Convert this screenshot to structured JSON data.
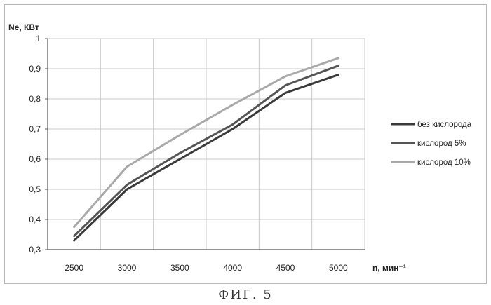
{
  "figure_caption": "ФИГ. 5",
  "chart_data": {
    "type": "line",
    "title": "",
    "xlabel": "n, мин⁻¹",
    "ylabel": "Ne, КВт",
    "x": [
      2500,
      3000,
      3500,
      4000,
      4500,
      5000
    ],
    "x_tick_labels": [
      "2500",
      "3000",
      "3500",
      "4000",
      "4500",
      "5000"
    ],
    "ylim": [
      0.3,
      1.0
    ],
    "y_ticks": [
      0.3,
      0.4,
      0.5,
      0.6,
      0.7,
      0.8,
      0.9,
      1.0
    ],
    "y_tick_labels": [
      "0,3",
      "0,4",
      "0,5",
      "0,6",
      "0,7",
      "0,8",
      "0,9",
      "1"
    ],
    "grid": true,
    "legend_position": "right",
    "series": [
      {
        "name": "без кислорода",
        "color": "#3a3a3a",
        "values": [
          0.33,
          0.5,
          0.6,
          0.7,
          0.82,
          0.88
        ]
      },
      {
        "name": "кислород 5%",
        "color": "#555555",
        "values": [
          0.345,
          0.515,
          0.62,
          0.715,
          0.845,
          0.91
        ]
      },
      {
        "name": "кислород 10%",
        "color": "#a9a9a9",
        "values": [
          0.375,
          0.575,
          0.68,
          0.78,
          0.875,
          0.935
        ]
      }
    ]
  }
}
